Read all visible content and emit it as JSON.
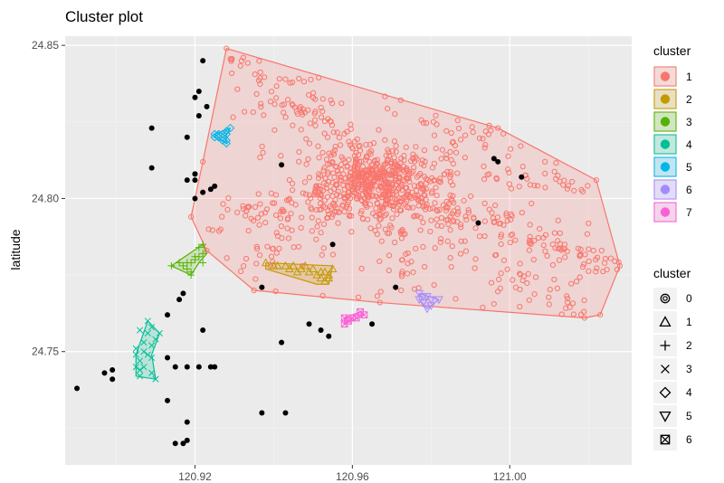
{
  "chart_data": {
    "type": "scatter",
    "title": "Cluster plot",
    "xlabel": "",
    "ylabel": "latitude",
    "xlim": [
      120.887,
      121.031
    ],
    "ylim": [
      24.713,
      24.853
    ],
    "x_ticks": [
      120.92,
      120.96,
      121.0
    ],
    "x_tick_labels": [
      "120.92",
      "120.96",
      "121.00"
    ],
    "y_ticks": [
      24.75,
      24.8,
      24.85
    ],
    "y_tick_labels": [
      "24.75",
      "24.80",
      "24.85"
    ],
    "grid": true,
    "background": "#ebebeb",
    "legend": {
      "position": "right",
      "color_title": "cluster",
      "color_entries": [
        {
          "label": "1",
          "color": "#F8766D"
        },
        {
          "label": "2",
          "color": "#C49A00"
        },
        {
          "label": "3",
          "color": "#53B400"
        },
        {
          "label": "4",
          "color": "#00C094"
        },
        {
          "label": "5",
          "color": "#00B6EB"
        },
        {
          "label": "6",
          "color": "#A58AFF"
        },
        {
          "label": "7",
          "color": "#FB61D7"
        }
      ],
      "shape_title": "cluster",
      "shape_entries": [
        {
          "label": "0",
          "shape": "circle-ring"
        },
        {
          "label": "1",
          "shape": "triangle"
        },
        {
          "label": "2",
          "shape": "plus"
        },
        {
          "label": "3",
          "shape": "cross"
        },
        {
          "label": "4",
          "shape": "diamond"
        },
        {
          "label": "5",
          "shape": "triangle-down"
        },
        {
          "label": "6",
          "shape": "square-x"
        }
      ]
    },
    "noise_points": {
      "name": "0",
      "color": "#000000",
      "points": [
        [
          120.922,
          24.845
        ],
        [
          120.921,
          24.835
        ],
        [
          120.92,
          24.833
        ],
        [
          120.923,
          24.83
        ],
        [
          120.921,
          24.827
        ],
        [
          120.909,
          24.823
        ],
        [
          120.918,
          24.82
        ],
        [
          120.909,
          24.81
        ],
        [
          120.92,
          24.808
        ],
        [
          120.92,
          24.806
        ],
        [
          120.918,
          24.806
        ],
        [
          120.925,
          24.804
        ],
        [
          120.922,
          24.802
        ],
        [
          120.92,
          24.8
        ],
        [
          120.942,
          24.811
        ],
        [
          120.997,
          24.812
        ],
        [
          120.996,
          24.813
        ],
        [
          121.003,
          24.807
        ],
        [
          120.992,
          24.792
        ],
        [
          120.955,
          24.785
        ],
        [
          120.937,
          24.771
        ],
        [
          120.971,
          24.771
        ],
        [
          120.913,
          24.762
        ],
        [
          120.916,
          24.767
        ],
        [
          120.917,
          24.769
        ],
        [
          120.922,
          24.757
        ],
        [
          120.949,
          24.759
        ],
        [
          120.952,
          24.757
        ],
        [
          120.954,
          24.755
        ],
        [
          120.965,
          24.759
        ],
        [
          120.942,
          24.753
        ],
        [
          120.913,
          24.748
        ],
        [
          120.915,
          24.745
        ],
        [
          120.918,
          24.745
        ],
        [
          120.921,
          24.745
        ],
        [
          120.924,
          24.745
        ],
        [
          120.925,
          24.745
        ],
        [
          120.897,
          24.743
        ],
        [
          120.899,
          24.744
        ],
        [
          120.899,
          24.741
        ],
        [
          120.89,
          24.738
        ],
        [
          120.913,
          24.734
        ],
        [
          120.937,
          24.73
        ],
        [
          120.943,
          24.73
        ],
        [
          120.918,
          24.727
        ],
        [
          120.918,
          24.721
        ],
        [
          120.917,
          24.72
        ],
        [
          120.915,
          24.72
        ],
        [
          120.92,
          24.808
        ],
        [
          120.924,
          24.803
        ]
      ]
    },
    "clusters": [
      {
        "name": "1",
        "color": "#F8766D",
        "shape": "circle-ring",
        "n_points": 1100,
        "hull": [
          [
            120.928,
            24.849
          ],
          [
            120.997,
            24.823
          ],
          [
            121.022,
            24.806
          ],
          [
            121.028,
            24.778
          ],
          [
            121.023,
            24.762
          ],
          [
            121.019,
            24.761
          ],
          [
            120.967,
            24.766
          ],
          [
            120.935,
            24.77
          ],
          [
            120.923,
            24.783
          ],
          [
            120.919,
            24.794
          ],
          [
            120.922,
            24.812
          ]
        ],
        "center": [
          120.965,
          24.805
        ],
        "arms": [
          {
            "from": [
              120.965,
              24.807
            ],
            "to": [
              121.028,
              24.776
            ],
            "weight": 0.16
          },
          {
            "from": [
              120.965,
              24.807
            ],
            "to": [
              120.928,
              24.848
            ],
            "weight": 0.09
          },
          {
            "from": [
              120.965,
              24.807
            ],
            "to": [
              121.02,
              24.806
            ],
            "weight": 0.07
          },
          {
            "from": [
              120.965,
              24.807
            ],
            "to": [
              120.925,
              24.79
            ],
            "weight": 0.08
          },
          {
            "from": [
              120.965,
              24.807
            ],
            "to": [
              120.997,
              24.823
            ],
            "weight": 0.06
          },
          {
            "from": [
              120.965,
              24.807
            ],
            "to": [
              120.944,
              24.846
            ],
            "weight": 0.05
          },
          {
            "from": [
              120.965,
              24.807
            ],
            "to": [
              121.02,
              24.761
            ],
            "weight": 0.08
          },
          {
            "from": [
              120.965,
              24.807
            ],
            "to": [
              120.935,
              24.779
            ],
            "weight": 0.05
          },
          {
            "from": [
              120.965,
              24.807
            ],
            "to": [
              120.975,
              24.772
            ],
            "weight": 0.05
          }
        ]
      },
      {
        "name": "2",
        "color": "#C49A00",
        "shape": "triangle",
        "hull": [
          [
            120.938,
            24.779
          ],
          [
            120.955,
            24.778
          ],
          [
            120.954,
            24.772
          ],
          [
            120.951,
            24.772
          ],
          [
            120.938,
            24.777
          ]
        ],
        "points": [
          [
            120.938,
            24.779
          ],
          [
            120.941,
            24.778
          ],
          [
            120.943,
            24.778
          ],
          [
            120.945,
            24.778
          ],
          [
            120.947,
            24.777
          ],
          [
            120.949,
            24.776
          ],
          [
            120.951,
            24.775
          ],
          [
            120.952,
            24.774
          ],
          [
            120.953,
            24.773
          ],
          [
            120.954,
            24.774
          ],
          [
            120.955,
            24.777
          ],
          [
            120.953,
            24.776
          ],
          [
            120.95,
            24.777
          ],
          [
            120.944,
            24.777
          ],
          [
            120.948,
            24.778
          ],
          [
            120.952,
            24.776
          ],
          [
            120.954,
            24.775
          ],
          [
            120.946,
            24.776
          ],
          [
            120.94,
            24.778
          ]
        ]
      },
      {
        "name": "3",
        "color": "#53B400",
        "shape": "plus",
        "hull": [
          [
            120.922,
            24.785
          ],
          [
            120.923,
            24.782
          ],
          [
            120.921,
            24.779
          ],
          [
            120.919,
            24.775
          ],
          [
            120.914,
            24.778
          ]
        ],
        "points": [
          [
            120.922,
            24.785
          ],
          [
            120.921,
            24.784
          ],
          [
            120.922,
            24.782
          ],
          [
            120.921,
            24.781
          ],
          [
            120.92,
            24.78
          ],
          [
            120.919,
            24.779
          ],
          [
            120.918,
            24.779
          ],
          [
            120.916,
            24.779
          ],
          [
            120.914,
            24.778
          ],
          [
            120.918,
            24.777
          ],
          [
            120.919,
            24.776
          ],
          [
            120.919,
            24.775
          ],
          [
            120.92,
            24.781
          ],
          [
            120.922,
            24.779
          ],
          [
            120.917,
            24.778
          ]
        ]
      },
      {
        "name": "4",
        "color": "#00C094",
        "shape": "cross",
        "hull": [
          [
            120.908,
            24.76
          ],
          [
            120.911,
            24.756
          ],
          [
            120.909,
            24.749
          ],
          [
            120.91,
            24.741
          ],
          [
            120.905,
            24.742
          ],
          [
            120.905,
            24.749
          ]
        ],
        "points": [
          [
            120.908,
            24.76
          ],
          [
            120.906,
            24.757
          ],
          [
            120.909,
            24.758
          ],
          [
            120.911,
            24.756
          ],
          [
            120.91,
            24.754
          ],
          [
            120.907,
            24.753
          ],
          [
            120.905,
            24.751
          ],
          [
            120.909,
            24.752
          ],
          [
            120.907,
            24.75
          ],
          [
            120.905,
            24.749
          ],
          [
            120.908,
            24.749
          ],
          [
            120.906,
            24.747
          ],
          [
            120.909,
            24.748
          ],
          [
            120.905,
            24.745
          ],
          [
            120.906,
            24.744
          ],
          [
            120.906,
            24.742
          ],
          [
            120.909,
            24.743
          ],
          [
            120.91,
            24.741
          ],
          [
            120.907,
            24.745
          ],
          [
            120.908,
            24.756
          ]
        ]
      },
      {
        "name": "5",
        "color": "#00B6EB",
        "shape": "diamond",
        "hull": [
          [
            120.929,
            24.823
          ],
          [
            120.928,
            24.821
          ],
          [
            120.928,
            24.818
          ],
          [
            120.925,
            24.82
          ],
          [
            120.925,
            24.821
          ]
        ],
        "points": [
          [
            120.929,
            24.823
          ],
          [
            120.928,
            24.822
          ],
          [
            120.928,
            24.821
          ],
          [
            120.927,
            24.821
          ],
          [
            120.926,
            24.821
          ],
          [
            120.925,
            24.82
          ],
          [
            120.925,
            24.821
          ],
          [
            120.927,
            24.82
          ],
          [
            120.928,
            24.819
          ],
          [
            120.928,
            24.818
          ],
          [
            120.927,
            24.819
          ],
          [
            120.926,
            24.82
          ]
        ]
      },
      {
        "name": "6",
        "color": "#A58AFF",
        "shape": "triangle-down",
        "hull": [
          [
            120.977,
            24.769
          ],
          [
            120.982,
            24.767
          ],
          [
            120.979,
            24.764
          ],
          [
            120.977,
            24.767
          ]
        ],
        "points": [
          [
            120.977,
            24.769
          ],
          [
            120.978,
            24.768
          ],
          [
            120.979,
            24.768
          ],
          [
            120.98,
            24.767
          ],
          [
            120.982,
            24.767
          ],
          [
            120.979,
            24.764
          ],
          [
            120.977,
            24.767
          ],
          [
            120.978,
            24.766
          ],
          [
            120.98,
            24.765
          ]
        ]
      },
      {
        "name": "7",
        "color": "#FB61D7",
        "shape": "square-x",
        "hull": [
          [
            120.962,
            24.763
          ],
          [
            120.963,
            24.762
          ],
          [
            120.958,
            24.759
          ],
          [
            120.958,
            24.761
          ]
        ],
        "points": [
          [
            120.962,
            24.763
          ],
          [
            120.963,
            24.762
          ],
          [
            120.961,
            24.761
          ],
          [
            120.96,
            24.761
          ],
          [
            120.959,
            24.76
          ],
          [
            120.958,
            24.759
          ],
          [
            120.958,
            24.761
          ]
        ]
      }
    ]
  }
}
